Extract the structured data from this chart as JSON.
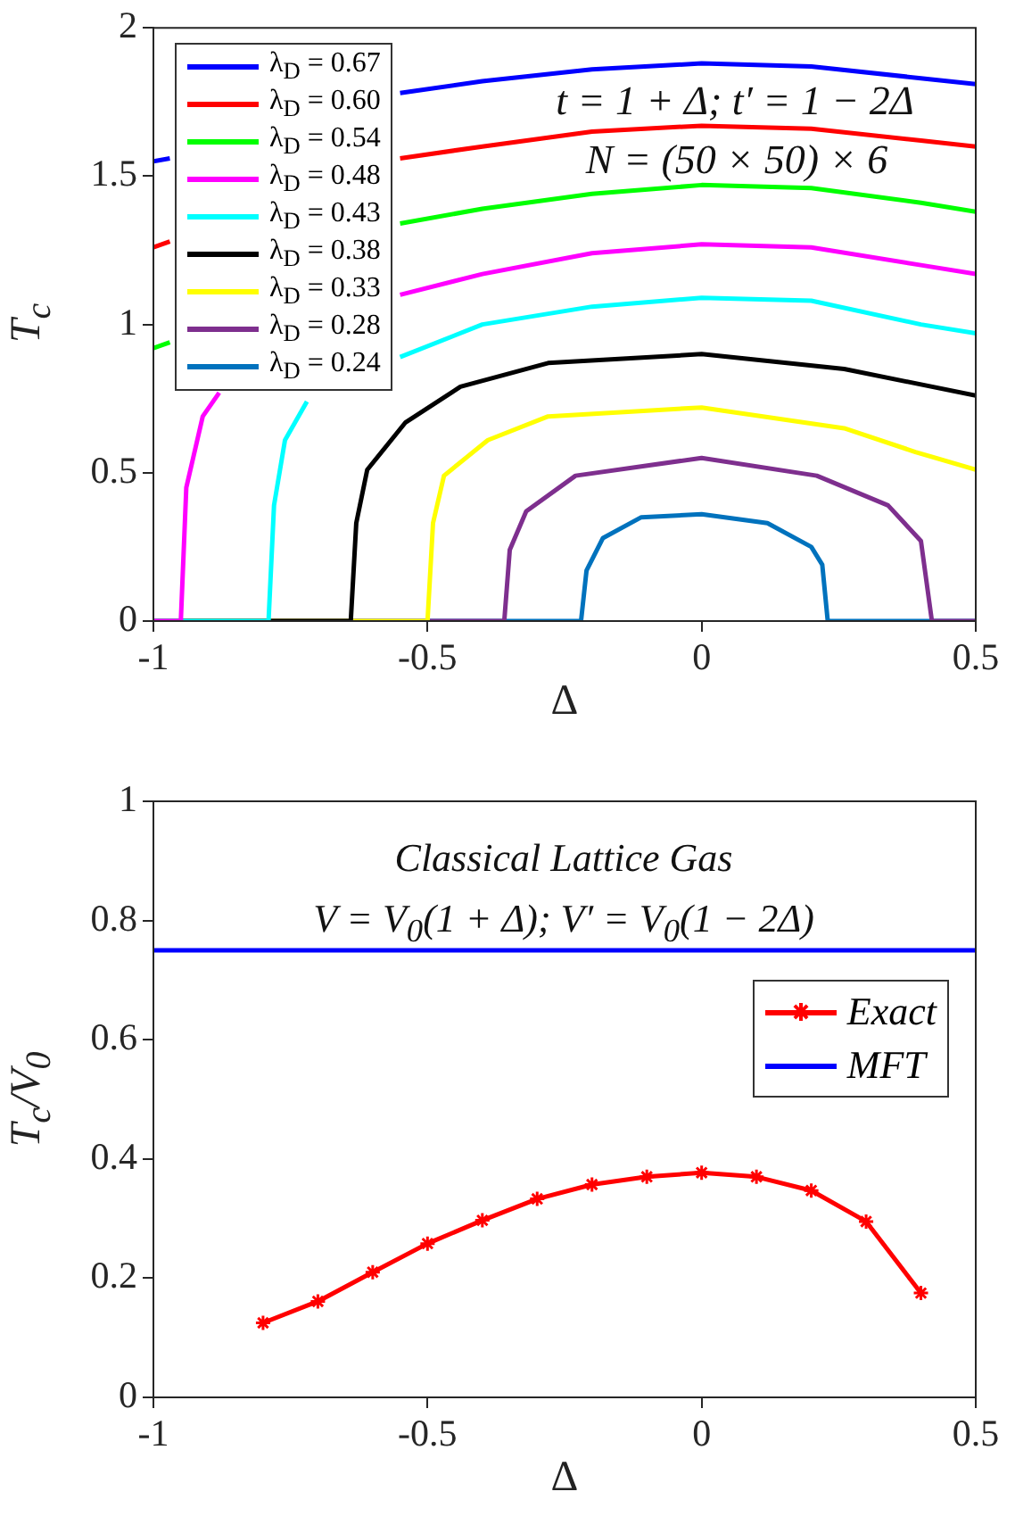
{
  "chart_data": [
    {
      "type": "line",
      "xlabel": "Δ",
      "ylabel": "T$_{c}$",
      "xlim": [
        -1,
        0.5
      ],
      "xticks": [
        -1,
        -0.5,
        0,
        0.5
      ],
      "ylim": [
        0,
        2
      ],
      "yticks": [
        0,
        0.5,
        1,
        1.5,
        2
      ],
      "grid": false,
      "legend": "top left",
      "marker": "none",
      "line_style": "solid",
      "annotations": [
        "t = 1 + Δ; t′ = 1 − 2Δ",
        "N = (50 × 50) × 6"
      ],
      "series": [
        {
          "name": "λ$_{D}$ = 0.67",
          "color": "#0000ff",
          "x": [
            -1,
            -0.97,
            -0.8,
            -0.55,
            -0.4,
            -0.2,
            0,
            0.2,
            0.4,
            0.5
          ],
          "values": [
            1.55,
            1.56,
            null,
            1.78,
            1.82,
            1.86,
            1.88,
            1.87,
            1.83,
            1.81
          ]
        },
        {
          "name": "λ$_{D}$ = 0.60",
          "color": "#ff0000",
          "x": [
            -1,
            -0.97,
            -0.8,
            -0.55,
            -0.4,
            -0.2,
            0,
            0.2,
            0.4,
            0.5
          ],
          "values": [
            1.26,
            1.28,
            null,
            1.56,
            1.6,
            1.65,
            1.67,
            1.66,
            1.62,
            1.6
          ]
        },
        {
          "name": "λ$_{D}$ = 0.54",
          "color": "#00ff00",
          "x": [
            -1,
            -0.97,
            -0.8,
            -0.55,
            -0.4,
            -0.2,
            0,
            0.2,
            0.4,
            0.5
          ],
          "values": [
            0.92,
            0.94,
            null,
            1.34,
            1.39,
            1.44,
            1.47,
            1.46,
            1.41,
            1.38
          ]
        },
        {
          "name": "λ$_{D}$ = 0.48",
          "color": "#ff00ff",
          "x": [
            -1,
            -0.95,
            -0.94,
            -0.91,
            -0.88,
            -0.7,
            -0.55,
            -0.4,
            -0.2,
            0,
            0.2,
            0.4,
            0.5
          ],
          "values": [
            0,
            0,
            0.45,
            0.69,
            0.77,
            null,
            1.1,
            1.17,
            1.24,
            1.27,
            1.26,
            1.2,
            1.17
          ]
        },
        {
          "name": "λ$_{D}$ = 0.43",
          "color": "#00ffff",
          "x": [
            -1,
            -0.79,
            -0.78,
            -0.76,
            -0.72,
            -0.65,
            -0.55,
            -0.4,
            -0.2,
            0,
            0.2,
            0.4,
            0.5
          ],
          "values": [
            0,
            0,
            0.39,
            0.61,
            0.74,
            null,
            0.89,
            1.0,
            1.06,
            1.09,
            1.08,
            1.0,
            0.97
          ]
        },
        {
          "name": "λ$_{D}$ = 0.38",
          "color": "#000000",
          "x": [
            -1,
            -0.64,
            -0.63,
            -0.61,
            -0.54,
            -0.44,
            -0.28,
            0,
            0.26,
            0.5
          ],
          "values": [
            0,
            0,
            0.33,
            0.51,
            0.67,
            0.79,
            0.87,
            0.9,
            0.85,
            0.76
          ]
        },
        {
          "name": "λ$_{D}$ = 0.33",
          "color": "#ffff00",
          "x": [
            -1,
            -0.5,
            -0.49,
            -0.47,
            -0.39,
            -0.28,
            0,
            0.26,
            0.39,
            0.5
          ],
          "values": [
            0,
            0,
            0.33,
            0.49,
            0.61,
            0.69,
            0.72,
            0.65,
            0.57,
            0.51
          ]
        },
        {
          "name": "λ$_{D}$ = 0.28",
          "color": "#7e2f8e",
          "x": [
            -1,
            -0.36,
            -0.35,
            -0.32,
            -0.23,
            0,
            0.21,
            0.34,
            0.4,
            0.42,
            0.5
          ],
          "values": [
            0,
            0,
            0.24,
            0.37,
            0.49,
            0.55,
            0.49,
            0.39,
            0.27,
            0,
            0
          ]
        },
        {
          "name": "λ$_{D}$ = 0.24",
          "color": "#0072bd",
          "x": [
            -1,
            -0.22,
            -0.21,
            -0.18,
            -0.11,
            0,
            0.12,
            0.2,
            0.22,
            0.23,
            0.5
          ],
          "values": [
            0,
            0,
            0.17,
            0.28,
            0.35,
            0.36,
            0.33,
            0.25,
            0.19,
            0,
            0
          ]
        }
      ]
    },
    {
      "type": "line",
      "xlabel": "Δ",
      "ylabel": "T$_{c}$/V$_{0}$",
      "xlim": [
        -1,
        0.5
      ],
      "xticks": [
        -1,
        -0.5,
        0,
        0.5
      ],
      "ylim": [
        0,
        1
      ],
      "yticks": [
        0,
        0.2,
        0.4,
        0.6,
        0.8,
        1
      ],
      "grid": false,
      "legend": "top right",
      "marker": "cross",
      "line_style": "solid",
      "annotations": [
        "Classical Lattice Gas",
        "V = V$_{0}$(1 + Δ); V′ = V$_{0}$(1 − 2Δ)"
      ],
      "series": [
        {
          "name": "Exact",
          "color": "#ff0000",
          "x": [
            -0.8,
            -0.7,
            -0.6,
            -0.5,
            -0.4,
            -0.3,
            -0.2,
            -0.1,
            0,
            0.1,
            0.2,
            0.3,
            0.4
          ],
          "values": [
            0.125,
            0.161,
            0.21,
            0.258,
            0.297,
            0.333,
            0.357,
            0.37,
            0.377,
            0.37,
            0.347,
            0.295,
            0.175
          ]
        },
        {
          "name": "MFT",
          "color": "#0000ff",
          "marker": "none",
          "x": [
            -1,
            0.5
          ],
          "values": [
            0.75,
            0.75
          ]
        }
      ]
    }
  ]
}
